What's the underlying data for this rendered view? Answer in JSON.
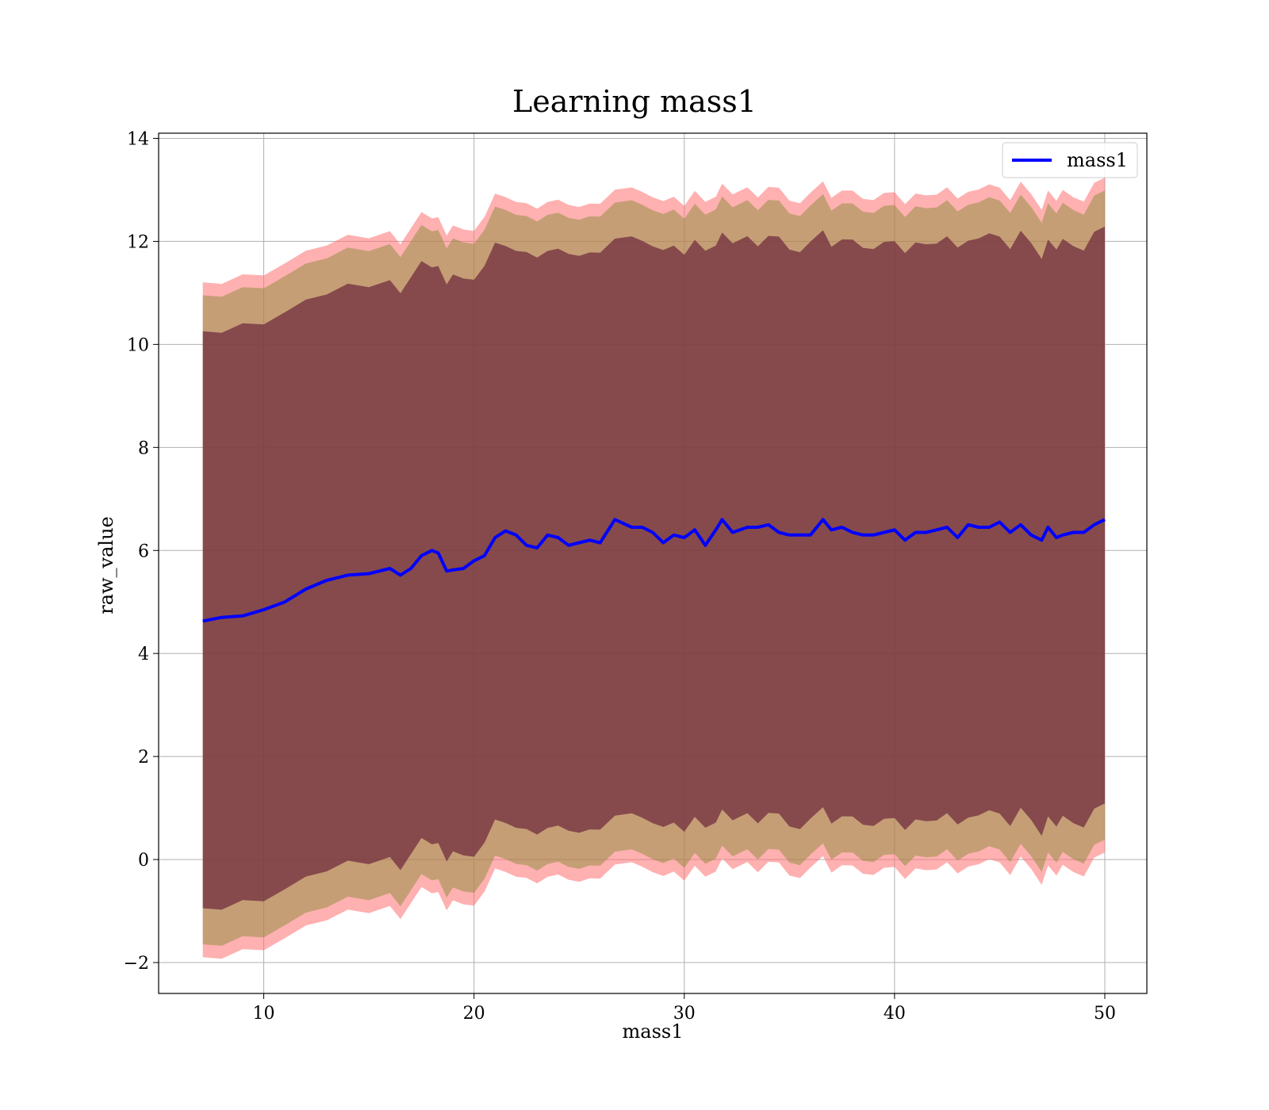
{
  "chart_data": {
    "type": "area",
    "title": "Learning mass1",
    "xlabel": "mass1",
    "ylabel": "raw_value",
    "xlim": [
      5,
      52
    ],
    "ylim": [
      -2.6,
      14.1
    ],
    "xticks": [
      10,
      20,
      30,
      40,
      50
    ],
    "yticks": [
      -2,
      0,
      2,
      4,
      6,
      8,
      10,
      12,
      14
    ],
    "xtick_labels": [
      "10",
      "20",
      "30",
      "40",
      "50"
    ],
    "ytick_labels": [
      "−2",
      "0",
      "2",
      "4",
      "6",
      "8",
      "10",
      "12",
      "14"
    ],
    "grid": true,
    "legend_position": "top-right",
    "colors": {
      "line": "#0000ff",
      "band_outer": "#ff7070",
      "band_middle": "#8c8c3c",
      "band_inner": "#6e2a3c"
    },
    "x": [
      7.1,
      8,
      9,
      10,
      11,
      12,
      13,
      14,
      15,
      16,
      16.5,
      17,
      17.5,
      18,
      18.3,
      18.7,
      19,
      19.5,
      20,
      20.5,
      21,
      21.5,
      22,
      22.5,
      23,
      23.5,
      24,
      24.5,
      25,
      25.5,
      26,
      26.7,
      27.5,
      28,
      28.5,
      29,
      29.5,
      30,
      30.5,
      31,
      31.5,
      31.8,
      32.3,
      33,
      33.5,
      34,
      34.5,
      35,
      35.5,
      36,
      36.6,
      37,
      37.5,
      38,
      38.5,
      39,
      39.5,
      40,
      40.5,
      41,
      41.5,
      42,
      42.5,
      43,
      43.5,
      44,
      44.5,
      45,
      45.5,
      46,
      46.5,
      47,
      47.3,
      47.7,
      48,
      48.5,
      49,
      49.5,
      50
    ],
    "series": [
      {
        "name": "mass1",
        "values": [
          4.63,
          4.7,
          4.73,
          4.85,
          5.0,
          5.25,
          5.42,
          5.52,
          5.55,
          5.65,
          5.52,
          5.65,
          5.9,
          6.0,
          5.95,
          5.6,
          5.62,
          5.65,
          5.8,
          5.9,
          6.25,
          6.38,
          6.3,
          6.1,
          6.05,
          6.3,
          6.25,
          6.1,
          6.15,
          6.2,
          6.15,
          6.6,
          6.45,
          6.45,
          6.35,
          6.15,
          6.3,
          6.25,
          6.4,
          6.1,
          6.4,
          6.6,
          6.35,
          6.45,
          6.45,
          6.5,
          6.35,
          6.3,
          6.3,
          6.3,
          6.6,
          6.4,
          6.45,
          6.35,
          6.3,
          6.3,
          6.35,
          6.4,
          6.2,
          6.35,
          6.35,
          6.4,
          6.45,
          6.25,
          6.5,
          6.45,
          6.45,
          6.55,
          6.35,
          6.5,
          6.3,
          6.2,
          6.45,
          6.25,
          6.3,
          6.35,
          6.35,
          6.5,
          6.6
        ]
      }
    ]
  },
  "legend": {
    "label": "mass1"
  }
}
